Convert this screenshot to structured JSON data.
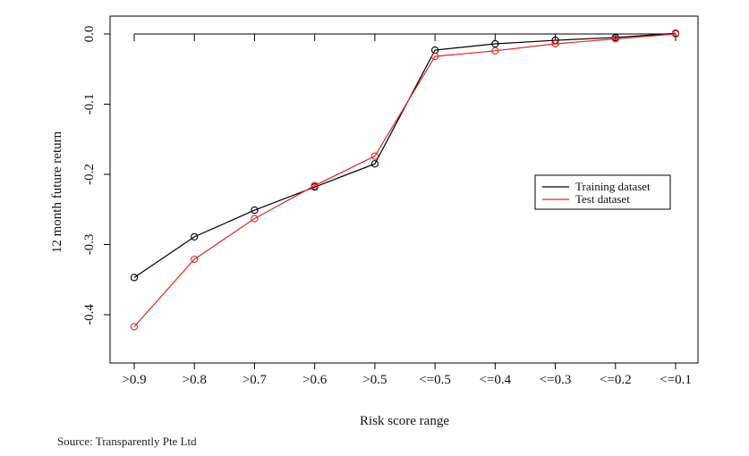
{
  "chart_data": {
    "type": "line",
    "title": "",
    "xlabel": "Risk score range",
    "ylabel": "12 month future return",
    "categories": [
      ">0.9",
      ">0.8",
      ">0.7",
      ">0.6",
      ">0.5",
      "<=0.5",
      "<=0.4",
      "<=0.3",
      "<=0.2",
      "<=0.1"
    ],
    "ylim": [
      -0.45,
      0.0
    ],
    "yticks": [
      0.0,
      -0.1,
      -0.2,
      -0.3,
      -0.4
    ],
    "ytick_labels": [
      "0.0",
      "-0.1",
      "-0.2",
      "-0.3",
      "-0.4"
    ],
    "grid": false,
    "legend_position": "right",
    "series": [
      {
        "name": "Training dataset",
        "color": "#000000",
        "values": [
          -0.347,
          -0.289,
          -0.251,
          -0.218,
          -0.185,
          -0.023,
          -0.014,
          -0.009,
          -0.005,
          0.001
        ]
      },
      {
        "name": "Test dataset",
        "color": "#d9262b",
        "values": [
          -0.417,
          -0.321,
          -0.263,
          -0.216,
          -0.174,
          -0.032,
          -0.024,
          -0.014,
          -0.007,
          0.0
        ]
      }
    ]
  },
  "source_note": "Source: Transparently Pte Ltd"
}
